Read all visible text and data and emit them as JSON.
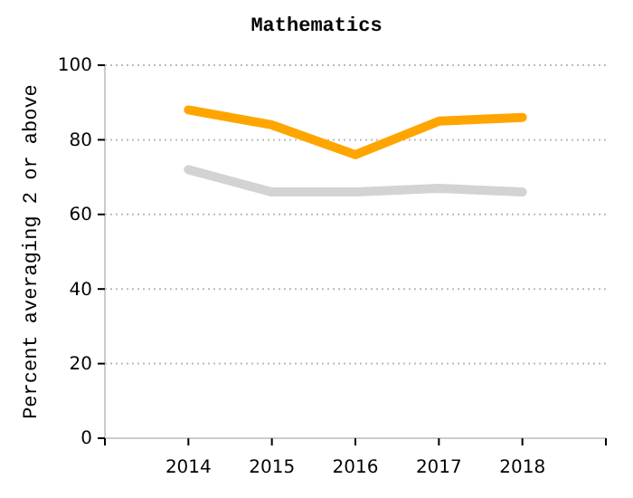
{
  "chart_data": {
    "type": "line",
    "title": "Mathematics",
    "ylabel": "Percent averaging 2 or above",
    "x": [
      2014,
      2015,
      2016,
      2017,
      2018
    ],
    "series": [
      {
        "color": "#ffa500",
        "values": [
          88,
          84,
          76,
          85,
          86
        ]
      },
      {
        "color": "#d3d3d3",
        "values": [
          72,
          66,
          66,
          67,
          66
        ]
      }
    ],
    "xlim": [
      2013,
      2019
    ],
    "xticks": [
      {
        "value": 2013,
        "label": null
      },
      2014,
      2015,
      2016,
      2017,
      2018,
      {
        "value": 2019,
        "label": null
      }
    ],
    "ylim": [
      0,
      100
    ],
    "yticks": [
      0,
      20,
      40,
      60,
      80,
      100
    ],
    "grid": "y",
    "marker": "none",
    "line_style": "solid"
  }
}
